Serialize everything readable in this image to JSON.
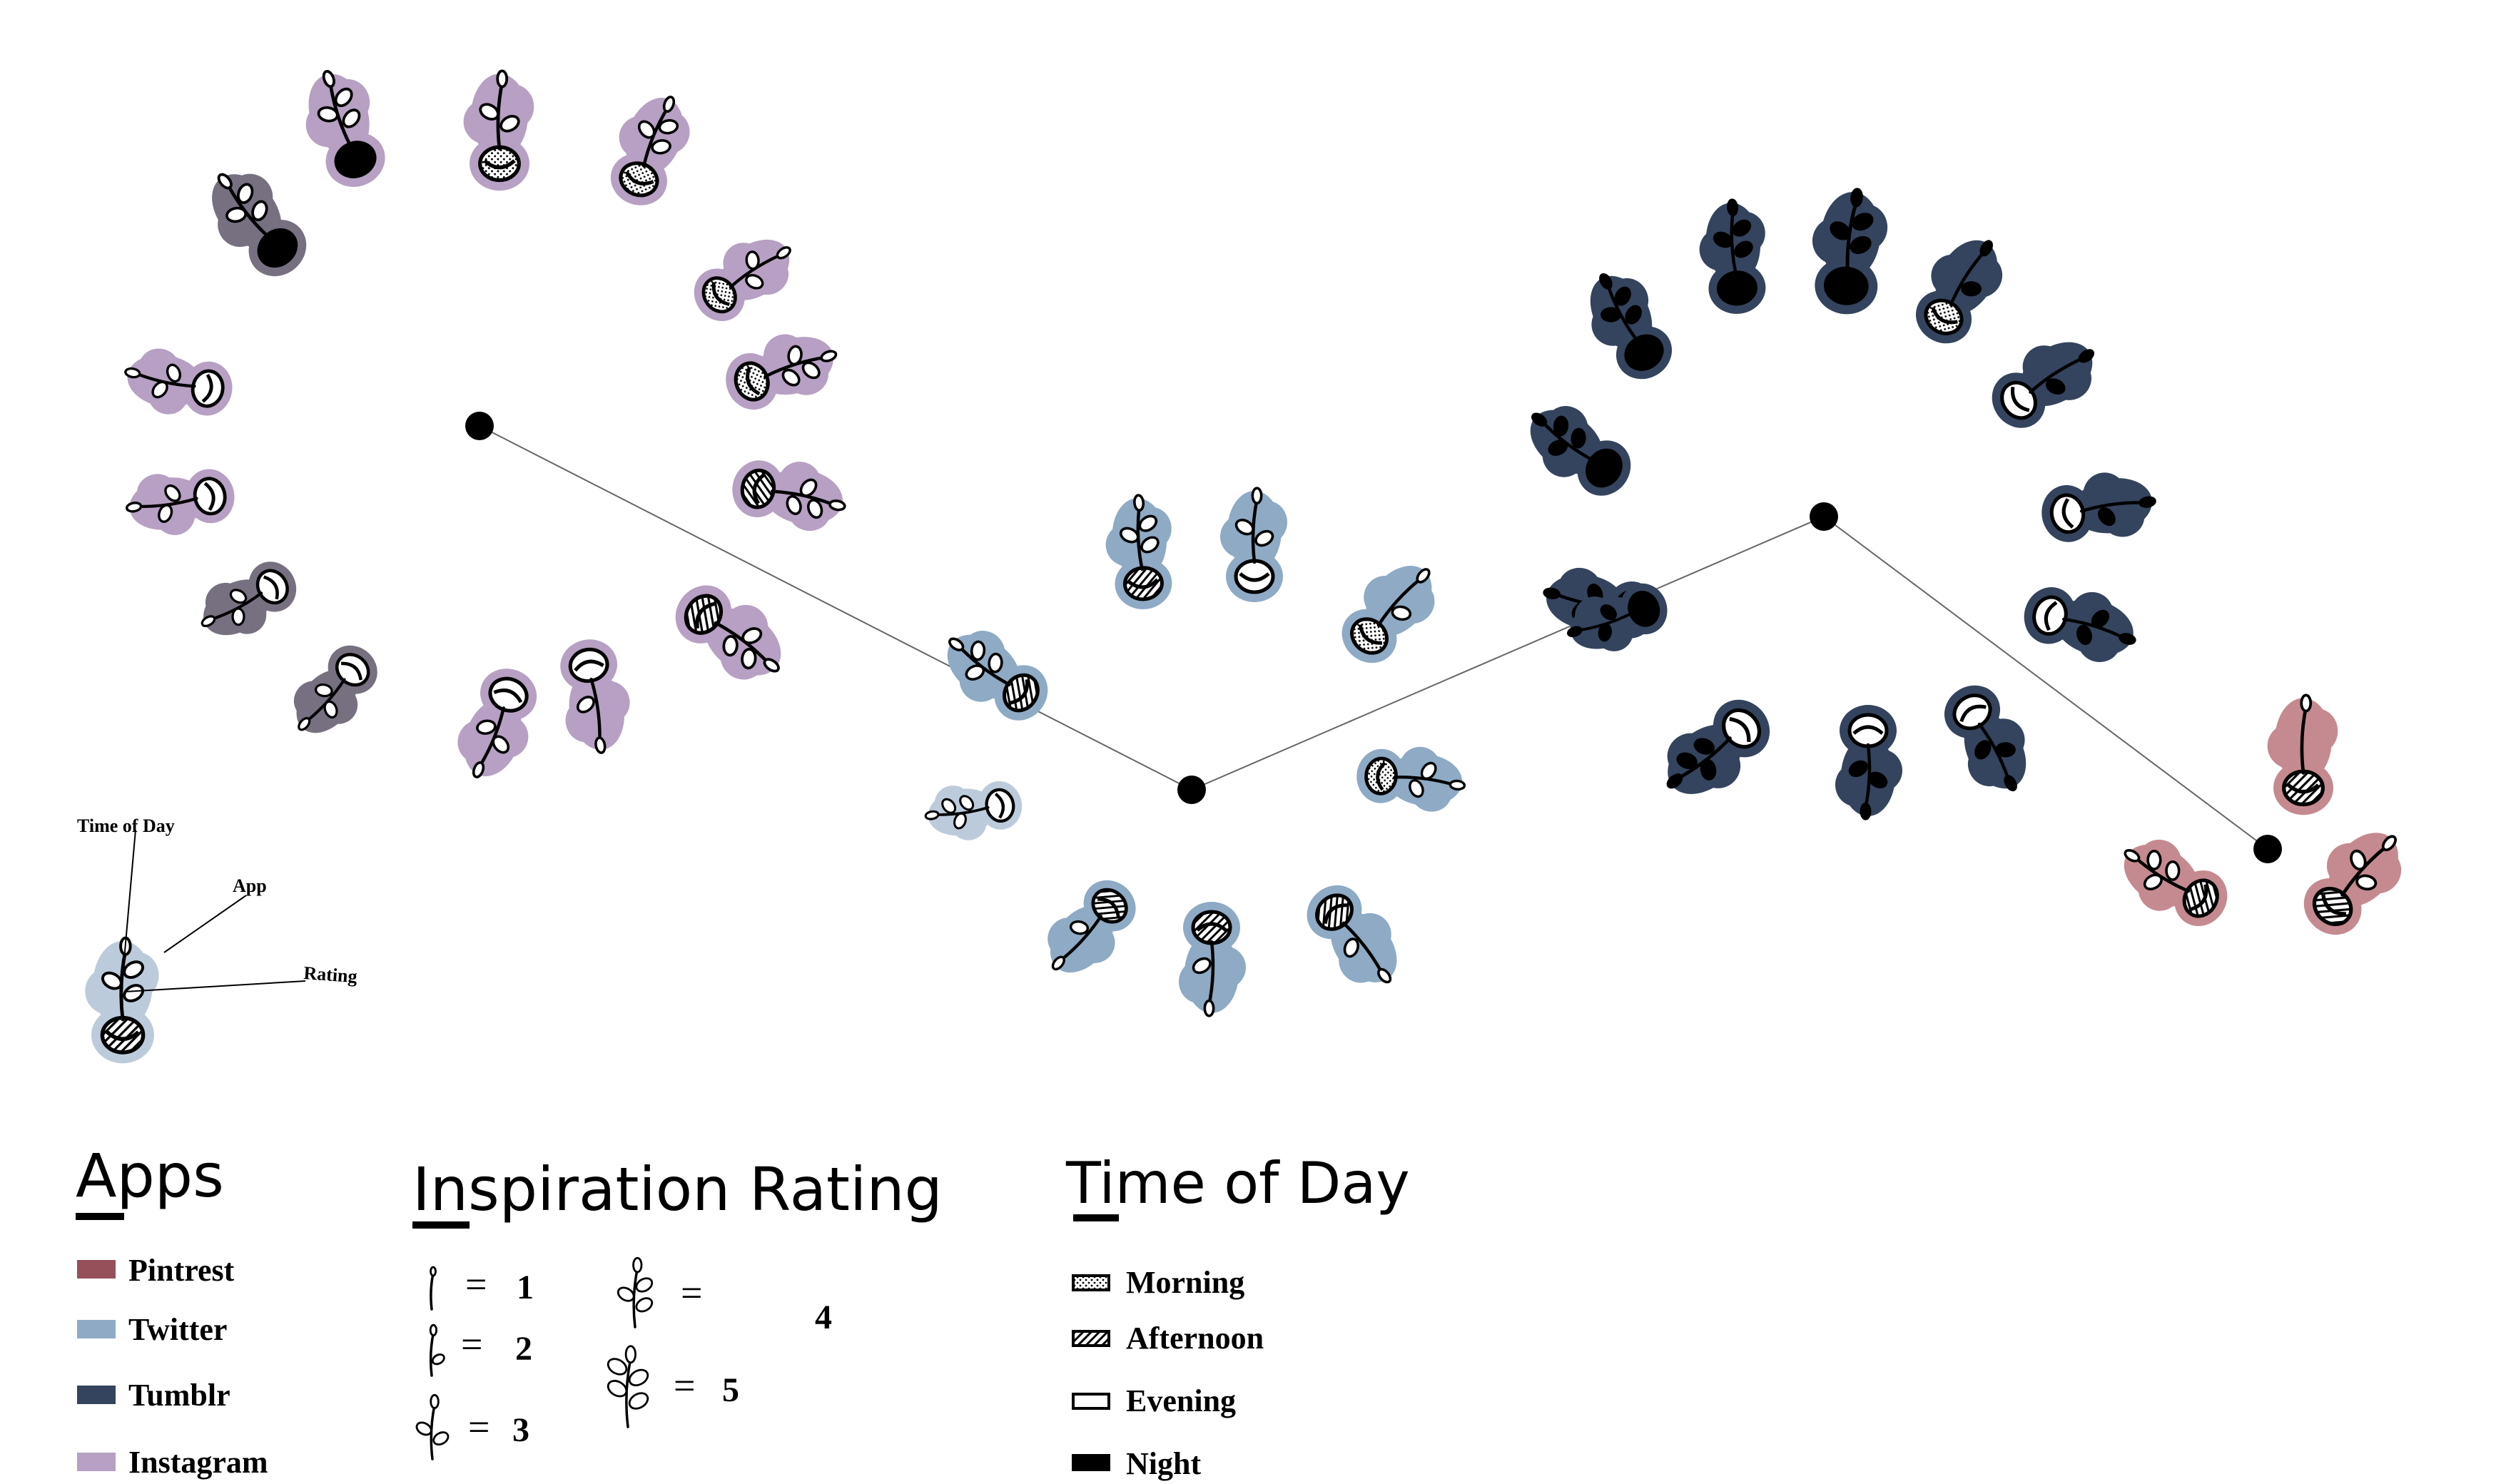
{
  "colors": {
    "pintrest": "#c58a8f",
    "pintrest_swatch": "#96505a",
    "twitter": "#8eaac5",
    "twitter_light": "#bccbdc",
    "tumblr": "#34445e",
    "instagram": "#b7a0c3",
    "instagram_dark": "#777080",
    "ink": "#000000",
    "line": "#666666"
  },
  "sample": {
    "time_label": "Time of Day",
    "app_label": "App",
    "rating_label": "Rating"
  },
  "legend": {
    "apps": {
      "title": "Apps",
      "items": [
        {
          "label": "Pintrest",
          "color": "#96505a"
        },
        {
          "label": "Twitter",
          "color": "#8eaac5"
        },
        {
          "label": "Tumblr",
          "color": "#34445e"
        },
        {
          "label": "Instagram",
          "color": "#b7a0c3"
        }
      ]
    },
    "rating": {
      "title": "Inspiration Rating",
      "eq": "=",
      "items": [
        {
          "value": "1",
          "leaves": 0
        },
        {
          "value": "2",
          "leaves": 1
        },
        {
          "value": "3",
          "leaves": 2
        },
        {
          "value": "4",
          "leaves": 3
        },
        {
          "value": "5",
          "leaves": 4
        }
      ]
    },
    "time": {
      "title": "Time of Day",
      "items": [
        {
          "label": "Morning",
          "pattern": "dots"
        },
        {
          "label": "Afternoon",
          "pattern": "hatch"
        },
        {
          "label": "Evening",
          "pattern": "blank"
        },
        {
          "label": "Night",
          "pattern": "solid"
        }
      ]
    }
  }
}
